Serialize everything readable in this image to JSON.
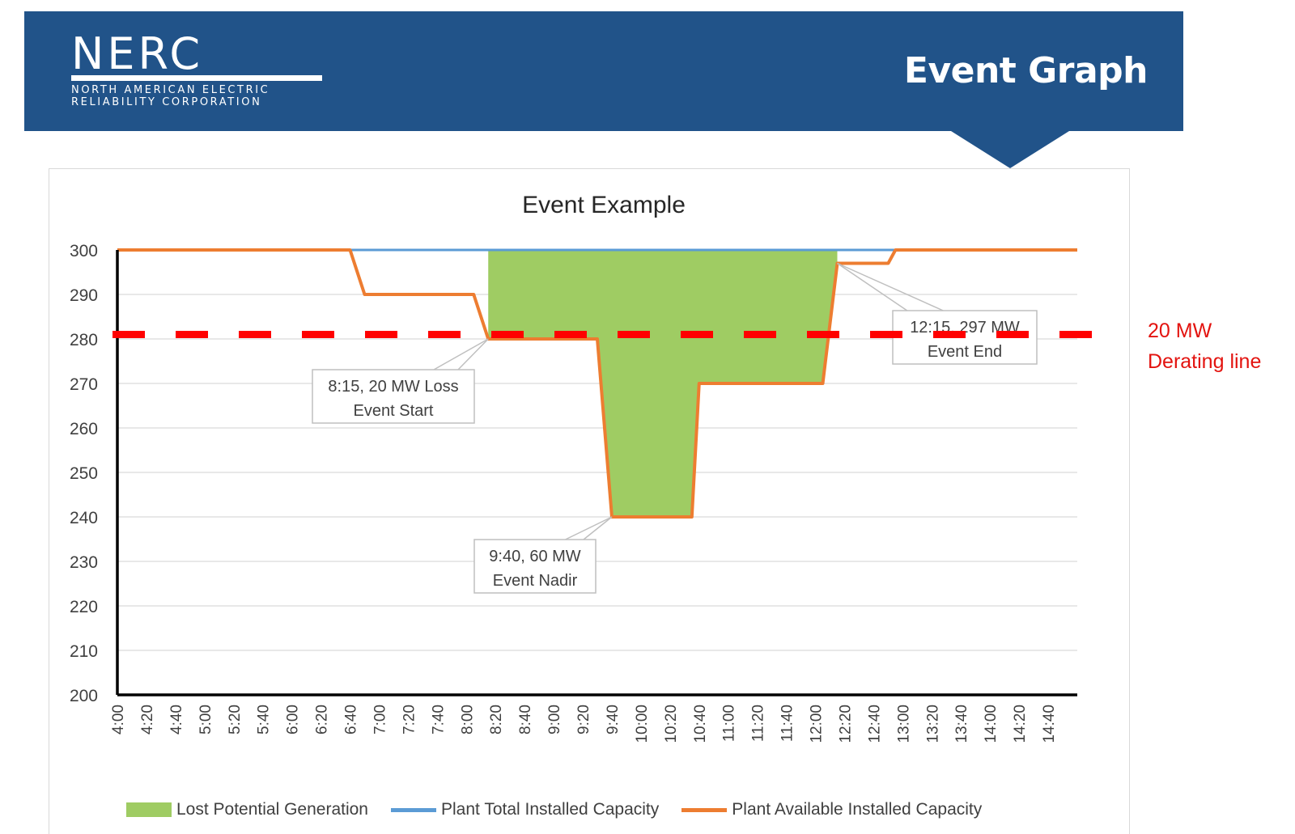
{
  "header": {
    "logo_name": "NERC",
    "logo_sub_line1": "NORTH AMERICAN ELECTRIC",
    "logo_sub_line2": "RELIABILITY CORPORATION",
    "page_title": "Event Graph"
  },
  "chart_data": {
    "type": "area",
    "title": "Event Example",
    "xlabel": "",
    "ylabel": "",
    "ylim": [
      200,
      300
    ],
    "yticks": [
      200,
      210,
      220,
      230,
      240,
      250,
      260,
      270,
      280,
      290,
      300
    ],
    "x_range": [
      "4:00",
      "15:00"
    ],
    "x_tick_labels": [
      "4:00",
      "4:20",
      "4:40",
      "5:00",
      "5:20",
      "5:40",
      "6:00",
      "6:20",
      "6:40",
      "7:00",
      "7:20",
      "7:40",
      "8:00",
      "8:20",
      "8:40",
      "9:00",
      "9:20",
      "9:40",
      "10:00",
      "10:20",
      "10:40",
      "11:00",
      "11:20",
      "11:40",
      "12:00",
      "12:20",
      "12:40",
      "13:00",
      "13:20",
      "13:40",
      "14:00",
      "14:20",
      "14:40"
    ],
    "grid": "horizontal",
    "legend_position": "bottom",
    "series": [
      {
        "name": "Plant Total Installed Capacity",
        "color": "#5b9bd5",
        "points": [
          [
            "4:00",
            300
          ],
          [
            "15:00",
            300
          ]
        ]
      },
      {
        "name": "Plant Available Installed Capacity",
        "color": "#ed7d31",
        "points": [
          [
            "4:00",
            300
          ],
          [
            "6:40",
            300
          ],
          [
            "6:50",
            290
          ],
          [
            "8:05",
            290
          ],
          [
            "8:15",
            280
          ],
          [
            "9:30",
            280
          ],
          [
            "9:40",
            240
          ],
          [
            "10:35",
            240
          ],
          [
            "10:40",
            270
          ],
          [
            "12:05",
            270
          ],
          [
            "12:15",
            297
          ],
          [
            "12:50",
            297
          ],
          [
            "12:55",
            300
          ],
          [
            "15:00",
            300
          ]
        ]
      },
      {
        "name": "Lost Potential Generation",
        "color": "#9fcc63",
        "kind": "area-between",
        "points": [
          [
            "8:15",
            280
          ],
          [
            "9:30",
            280
          ],
          [
            "9:40",
            240
          ],
          [
            "10:35",
            240
          ],
          [
            "10:40",
            270
          ],
          [
            "12:05",
            270
          ],
          [
            "12:15",
            297
          ]
        ]
      }
    ],
    "annotations": [
      {
        "line1": "8:15, 20 MW Loss",
        "line2": "Event Start",
        "time": "8:15",
        "value": 280
      },
      {
        "line1": "9:40, 60 MW",
        "line2": "Event Nadir",
        "time": "9:40",
        "value": 240
      },
      {
        "line1": "12:15, 297 MW",
        "line2": "Event End",
        "time": "12:15",
        "value": 297
      }
    ],
    "reference_line": {
      "value": 281,
      "color": "#ff0000",
      "style": "dashed"
    }
  },
  "side_note": {
    "line1": "20 MW",
    "line2": "Derating line",
    "color": "#e3130f"
  }
}
